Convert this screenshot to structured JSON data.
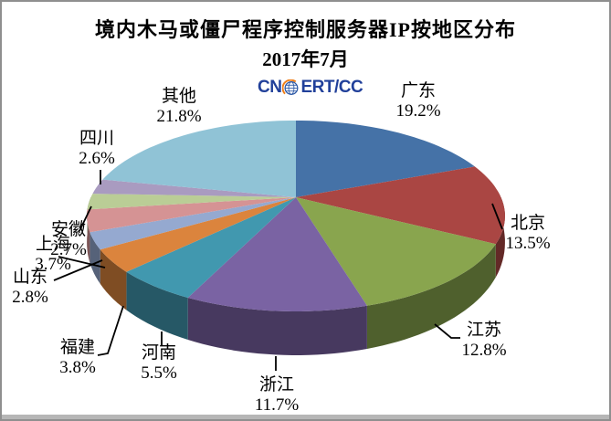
{
  "title": "境内木马或僵尸程序控制服务器IP按地区分布",
  "subtitle": "2017年7月",
  "logo": {
    "left": "CN",
    "right": "ERT/CC",
    "color": "#21409a",
    "globe_accent": "#ef7f1a"
  },
  "chart_data": {
    "type": "pie",
    "style": "3d",
    "unit": "%",
    "start_angle_deg": 0,
    "direction": "clockwise",
    "title": "境内木马或僵尸程序控制服务器IP按地区分布",
    "subtitle": "2017年7月",
    "slices": [
      {
        "label": "广东",
        "value": 19.2,
        "pct_label": "19.2%",
        "color": "#4572A7"
      },
      {
        "label": "北京",
        "value": 13.5,
        "pct_label": "13.5%",
        "color": "#AA4643"
      },
      {
        "label": "江苏",
        "value": 12.8,
        "pct_label": "12.8%",
        "color": "#89A54E"
      },
      {
        "label": "浙江",
        "value": 11.7,
        "pct_label": "11.7%",
        "color": "#7A63A3"
      },
      {
        "label": "河南",
        "value": 5.5,
        "pct_label": "5.5%",
        "color": "#4198AF"
      },
      {
        "label": "福建",
        "value": 3.8,
        "pct_label": "3.8%",
        "color": "#DB843D"
      },
      {
        "label": "山东",
        "value": 2.8,
        "pct_label": "2.8%",
        "color": "#95A9D0"
      },
      {
        "label": "上海",
        "value": 3.7,
        "pct_label": "3.7%",
        "color": "#D59394"
      },
      {
        "label": "安徽",
        "value": 2.7,
        "pct_label": "2.7%",
        "color": "#BACD96"
      },
      {
        "label": "四川",
        "value": 2.6,
        "pct_label": "2.6%",
        "color": "#A99BC0"
      },
      {
        "label": "其他",
        "value": 21.8,
        "pct_label": "21.8%",
        "color": "#90C3D6"
      }
    ]
  }
}
